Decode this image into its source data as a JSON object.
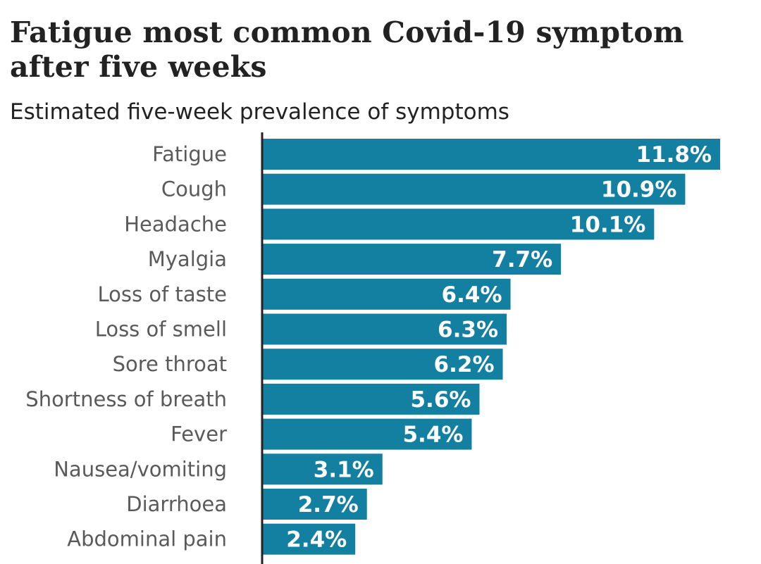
{
  "chart_data": {
    "type": "bar",
    "orientation": "horizontal",
    "title": "Fatigue most common Covid-19 symptom after five weeks",
    "subtitle": "Estimated five-week prevalence of symptoms",
    "categories": [
      "Fatigue",
      "Cough",
      "Headache",
      "Myalgia",
      "Loss of taste",
      "Loss of smell",
      "Sore throat",
      "Shortness of breath",
      "Fever",
      "Nausea/vomiting",
      "Diarrhoea",
      "Abdominal pain"
    ],
    "values": [
      11.8,
      10.9,
      10.1,
      7.7,
      6.4,
      6.3,
      6.2,
      5.6,
      5.4,
      3.1,
      2.7,
      2.4
    ],
    "value_labels": [
      "11.8%",
      "10.9%",
      "10.1%",
      "7.7%",
      "6.4%",
      "6.3%",
      "6.2%",
      "5.6%",
      "5.4%",
      "3.1%",
      "2.7%",
      "2.4%"
    ],
    "unit": "%",
    "xlim": [
      0,
      11.8
    ],
    "bar_color": "#1380a1",
    "axis_color": "#222222",
    "label_color": "#5a5a5a",
    "grid": false
  }
}
